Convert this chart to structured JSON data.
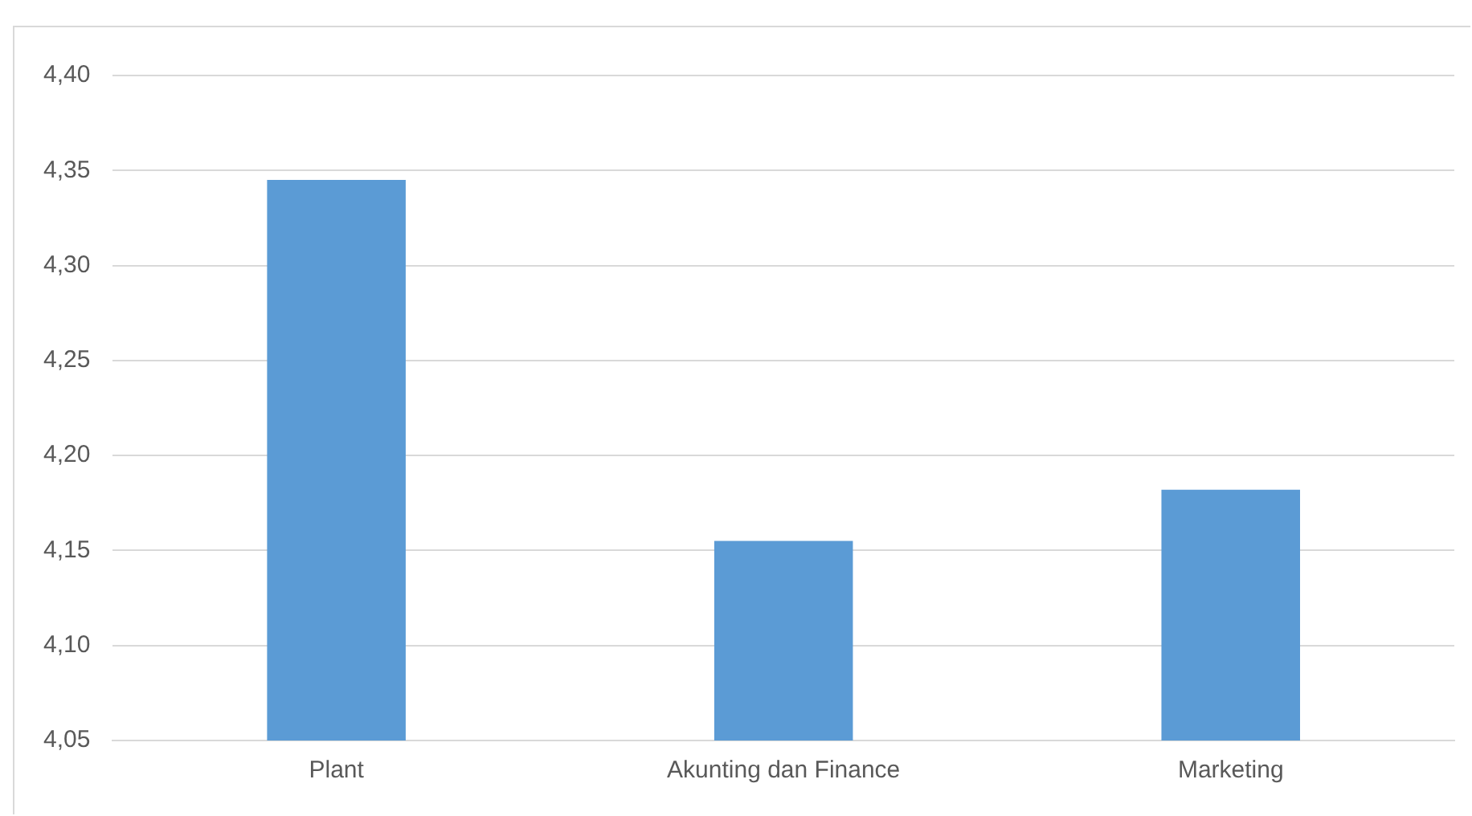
{
  "chart_data": {
    "type": "bar",
    "categories": [
      "Plant",
      "Akunting dan Finance",
      "Marketing"
    ],
    "values": [
      4.345,
      4.155,
      4.182
    ],
    "color": "#5b9bd5",
    "ylim": [
      4.05,
      4.4
    ],
    "yticks": [
      {
        "value": 4.05,
        "label": "4,05"
      },
      {
        "value": 4.1,
        "label": "4,10"
      },
      {
        "value": 4.15,
        "label": "4,15"
      },
      {
        "value": 4.2,
        "label": "4,20"
      },
      {
        "value": 4.25,
        "label": "4,25"
      },
      {
        "value": 4.3,
        "label": "4,30"
      },
      {
        "value": 4.35,
        "label": "4,35"
      },
      {
        "value": 4.4,
        "label": "4,40"
      }
    ],
    "grid": "y"
  }
}
